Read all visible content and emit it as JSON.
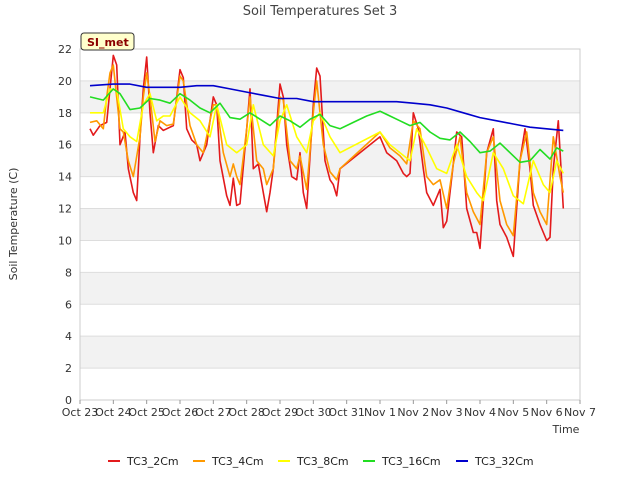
{
  "chart_data": {
    "type": "line",
    "title": "Soil Temperatures Set 3",
    "xlabel": "Time",
    "ylabel": "Soil Temperature (C)",
    "site_label": "SI_met",
    "x_tick_labels": [
      "Oct 23",
      "Oct 24",
      "Oct 25",
      "Oct 26",
      "Oct 27",
      "Oct 28",
      "Oct 29",
      "Oct 30",
      "Oct 31",
      "Nov 1",
      "Nov 2",
      "Nov 3",
      "Nov 4",
      "Nov 5",
      "Nov 6",
      "Nov 7"
    ],
    "xlim": [
      0,
      15
    ],
    "ylim": [
      0,
      22
    ],
    "y_ticks": [
      0,
      2,
      4,
      6,
      8,
      10,
      12,
      14,
      16,
      18,
      20,
      22
    ],
    "grid": "horizontal bands",
    "legend_position": "bottom",
    "series": [
      {
        "name": "TC3_2Cm",
        "color": "#e31a1c",
        "x": [
          0.3,
          0.4,
          0.6,
          0.8,
          0.9,
          1.0,
          1.1,
          1.2,
          1.35,
          1.45,
          1.6,
          1.7,
          1.8,
          1.9,
          2.0,
          2.1,
          2.2,
          2.35,
          2.5,
          2.6,
          2.8,
          3.0,
          3.1,
          3.2,
          3.35,
          3.5,
          3.6,
          3.8,
          4.0,
          4.1,
          4.2,
          4.4,
          4.5,
          4.6,
          4.7,
          4.8,
          5.0,
          5.1,
          5.2,
          5.35,
          5.5,
          5.6,
          5.7,
          5.8,
          6.0,
          6.1,
          6.2,
          6.35,
          6.5,
          6.6,
          6.7,
          6.8,
          7.0,
          7.1,
          7.2,
          7.35,
          7.5,
          7.6,
          7.7,
          7.8,
          9.0,
          9.2,
          9.5,
          9.7,
          9.8,
          9.9,
          10.0,
          10.15,
          10.3,
          10.4,
          10.6,
          10.8,
          10.9,
          11.0,
          11.2,
          11.3,
          11.45,
          11.6,
          11.8,
          11.9,
          12.0,
          12.2,
          12.4,
          12.5,
          12.6,
          12.8,
          13.0,
          13.2,
          13.35,
          13.5,
          13.6,
          13.8,
          14.0,
          14.1,
          14.2,
          14.35,
          14.5
        ],
        "y": [
          17.0,
          16.6,
          17.2,
          17.4,
          19.5,
          21.6,
          21.0,
          16.0,
          16.8,
          14.5,
          13.0,
          12.5,
          16.5,
          19.5,
          21.5,
          18.0,
          15.5,
          17.2,
          16.9,
          17.0,
          17.2,
          20.7,
          20.2,
          17.0,
          16.3,
          16.0,
          15.0,
          16.0,
          19.0,
          18.5,
          15.0,
          12.8,
          12.2,
          13.9,
          12.2,
          12.3,
          17.0,
          19.5,
          14.5,
          14.8,
          13.0,
          11.8,
          13.0,
          14.5,
          19.8,
          19.0,
          16.0,
          14.0,
          13.8,
          15.5,
          13.0,
          12.0,
          18.5,
          20.8,
          20.3,
          15.0,
          13.8,
          13.5,
          12.8,
          14.5,
          16.5,
          15.5,
          15.0,
          14.2,
          14.0,
          14.2,
          18.0,
          17.0,
          14.5,
          13.0,
          12.2,
          13.2,
          10.8,
          11.2,
          14.8,
          16.8,
          16.5,
          12.0,
          10.5,
          10.5,
          9.5,
          15.5,
          17.0,
          12.5,
          11.0,
          10.2,
          9.0,
          15.0,
          17.0,
          14.5,
          12.2,
          11.0,
          10.0,
          10.2,
          14.5,
          17.5,
          12.0
        ]
      },
      {
        "name": "TC3_4Cm",
        "color": "#ff9900",
        "x": [
          0.3,
          0.5,
          0.7,
          0.8,
          0.9,
          1.0,
          1.2,
          1.3,
          1.45,
          1.6,
          1.8,
          1.9,
          2.0,
          2.1,
          2.25,
          2.4,
          2.6,
          2.8,
          3.0,
          3.1,
          3.3,
          3.5,
          3.7,
          4.0,
          4.1,
          4.3,
          4.5,
          4.6,
          4.7,
          4.8,
          5.0,
          5.1,
          5.3,
          5.5,
          5.6,
          5.8,
          6.0,
          6.1,
          6.3,
          6.5,
          6.6,
          6.8,
          7.0,
          7.1,
          7.3,
          7.5,
          7.7,
          7.8,
          9.0,
          9.3,
          9.6,
          9.8,
          10.0,
          10.2,
          10.4,
          10.6,
          10.8,
          11.0,
          11.2,
          11.4,
          11.6,
          11.8,
          12.0,
          12.2,
          12.4,
          12.6,
          12.8,
          13.0,
          13.2,
          13.4,
          13.6,
          13.8,
          14.0,
          14.2,
          14.4,
          14.5
        ],
        "y": [
          17.4,
          17.5,
          17.0,
          19.0,
          20.5,
          21.0,
          17.0,
          16.8,
          15.0,
          14.0,
          16.5,
          19.0,
          20.5,
          19.0,
          16.2,
          17.5,
          17.2,
          17.3,
          20.3,
          20.0,
          17.2,
          16.0,
          15.5,
          18.5,
          18.5,
          15.5,
          14.0,
          14.8,
          14.0,
          13.5,
          17.0,
          19.0,
          15.0,
          14.5,
          13.5,
          14.5,
          19.0,
          18.8,
          15.0,
          14.5,
          15.3,
          13.2,
          18.0,
          20.0,
          16.0,
          14.3,
          13.8,
          14.5,
          16.8,
          15.8,
          15.3,
          14.8,
          17.5,
          17.0,
          14.0,
          13.5,
          13.8,
          12.0,
          14.8,
          16.5,
          13.0,
          11.8,
          11.0,
          15.5,
          16.5,
          12.5,
          11.0,
          10.3,
          15.0,
          16.8,
          13.0,
          11.8,
          11.0,
          16.5,
          14.0,
          13.0
        ]
      },
      {
        "name": "TC3_8Cm",
        "color": "#ffff00",
        "x": [
          0.3,
          0.7,
          0.9,
          1.1,
          1.3,
          1.5,
          1.7,
          1.9,
          2.1,
          2.3,
          2.5,
          2.7,
          3.0,
          3.3,
          3.6,
          3.9,
          4.1,
          4.4,
          4.7,
          5.0,
          5.2,
          5.5,
          5.8,
          6.0,
          6.2,
          6.5,
          6.8,
          7.0,
          7.2,
          7.5,
          7.8,
          9.0,
          9.3,
          9.6,
          9.9,
          10.1,
          10.4,
          10.7,
          11.0,
          11.3,
          11.6,
          11.9,
          12.1,
          12.4,
          12.7,
          13.0,
          13.3,
          13.6,
          13.9,
          14.1,
          14.3,
          14.5
        ],
        "y": [
          18.0,
          18.0,
          19.5,
          19.4,
          17.0,
          16.5,
          16.2,
          18.5,
          19.2,
          17.5,
          17.8,
          17.8,
          19.0,
          18.0,
          17.5,
          16.5,
          18.5,
          16.0,
          15.5,
          16.0,
          18.5,
          16.0,
          15.3,
          17.5,
          18.5,
          16.5,
          15.5,
          17.5,
          18.0,
          16.5,
          15.5,
          16.8,
          16.0,
          15.5,
          15.0,
          17.0,
          15.8,
          14.5,
          14.2,
          16.0,
          14.0,
          13.0,
          12.5,
          15.5,
          14.5,
          12.8,
          12.3,
          15.0,
          13.5,
          13.0,
          15.0,
          14.2
        ]
      },
      {
        "name": "TC3_16Cm",
        "color": "#22dd22",
        "x": [
          0.3,
          0.7,
          1.0,
          1.2,
          1.5,
          1.8,
          2.1,
          2.4,
          2.7,
          3.0,
          3.3,
          3.6,
          3.9,
          4.2,
          4.5,
          4.8,
          5.1,
          5.4,
          5.7,
          6.0,
          6.3,
          6.6,
          6.9,
          7.2,
          7.5,
          7.8,
          8.2,
          8.6,
          9.0,
          9.3,
          9.6,
          9.9,
          10.2,
          10.5,
          10.8,
          11.1,
          11.4,
          11.7,
          12.0,
          12.3,
          12.6,
          12.9,
          13.2,
          13.5,
          13.8,
          14.1,
          14.3,
          14.5
        ],
        "y": [
          19.0,
          18.8,
          19.5,
          19.2,
          18.2,
          18.3,
          18.9,
          18.8,
          18.6,
          19.2,
          18.8,
          18.3,
          18.0,
          18.6,
          17.7,
          17.6,
          18.0,
          17.6,
          17.2,
          17.8,
          17.5,
          17.1,
          17.6,
          17.9,
          17.2,
          17.0,
          17.4,
          17.8,
          18.1,
          17.8,
          17.5,
          17.2,
          17.4,
          16.8,
          16.4,
          16.3,
          16.8,
          16.2,
          15.5,
          15.6,
          16.1,
          15.5,
          14.9,
          15.0,
          15.7,
          15.1,
          15.8,
          15.6
        ]
      },
      {
        "name": "TC3_32Cm",
        "color": "#0000cc",
        "x": [
          0.3,
          1.0,
          1.5,
          2.0,
          3.0,
          3.5,
          4.0,
          4.5,
          5.0,
          5.5,
          6.0,
          6.5,
          7.0,
          7.5,
          8.0,
          8.5,
          9.0,
          9.5,
          10.0,
          10.5,
          11.0,
          11.5,
          12.0,
          12.5,
          13.0,
          13.5,
          14.0,
          14.5
        ],
        "y": [
          19.7,
          19.8,
          19.8,
          19.6,
          19.6,
          19.7,
          19.7,
          19.5,
          19.3,
          19.1,
          18.9,
          18.9,
          18.7,
          18.7,
          18.7,
          18.7,
          18.7,
          18.7,
          18.6,
          18.5,
          18.3,
          18.0,
          17.7,
          17.5,
          17.3,
          17.1,
          17.0,
          16.9
        ]
      }
    ]
  }
}
